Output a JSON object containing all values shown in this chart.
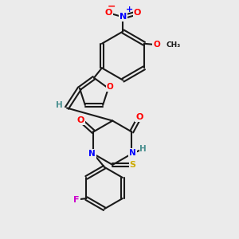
{
  "background_color": "#ebebeb",
  "bond_color": "#1a1a1a",
  "atom_colors": {
    "O": "#ff0000",
    "N": "#0000ff",
    "S": "#ccaa00",
    "F": "#cc00cc",
    "H": "#4a9090",
    "C": "#1a1a1a",
    "plus": "#0000ff",
    "minus": "#ff0000"
  }
}
